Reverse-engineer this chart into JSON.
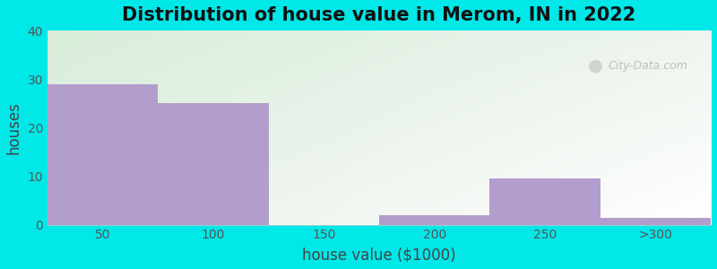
{
  "title": "Distribution of house value in Merom, IN in 2022",
  "xlabel": "house value ($1000)",
  "ylabel": "houses",
  "categories": [
    "50",
    "100",
    "150",
    "200",
    "250",
    ">300"
  ],
  "values": [
    29,
    25,
    0,
    2,
    9.5,
    1.5
  ],
  "bar_color": "#b39dcc",
  "ylim": [
    0,
    40
  ],
  "yticks": [
    0,
    10,
    20,
    30,
    40
  ],
  "background_outer": "#00e8e8",
  "grad_top_left": "#ddeedd",
  "grad_bottom_right": "#ffffff",
  "watermark_text": "City-Data.com",
  "title_fontsize": 15,
  "axis_label_fontsize": 12,
  "tick_fontsize": 10
}
